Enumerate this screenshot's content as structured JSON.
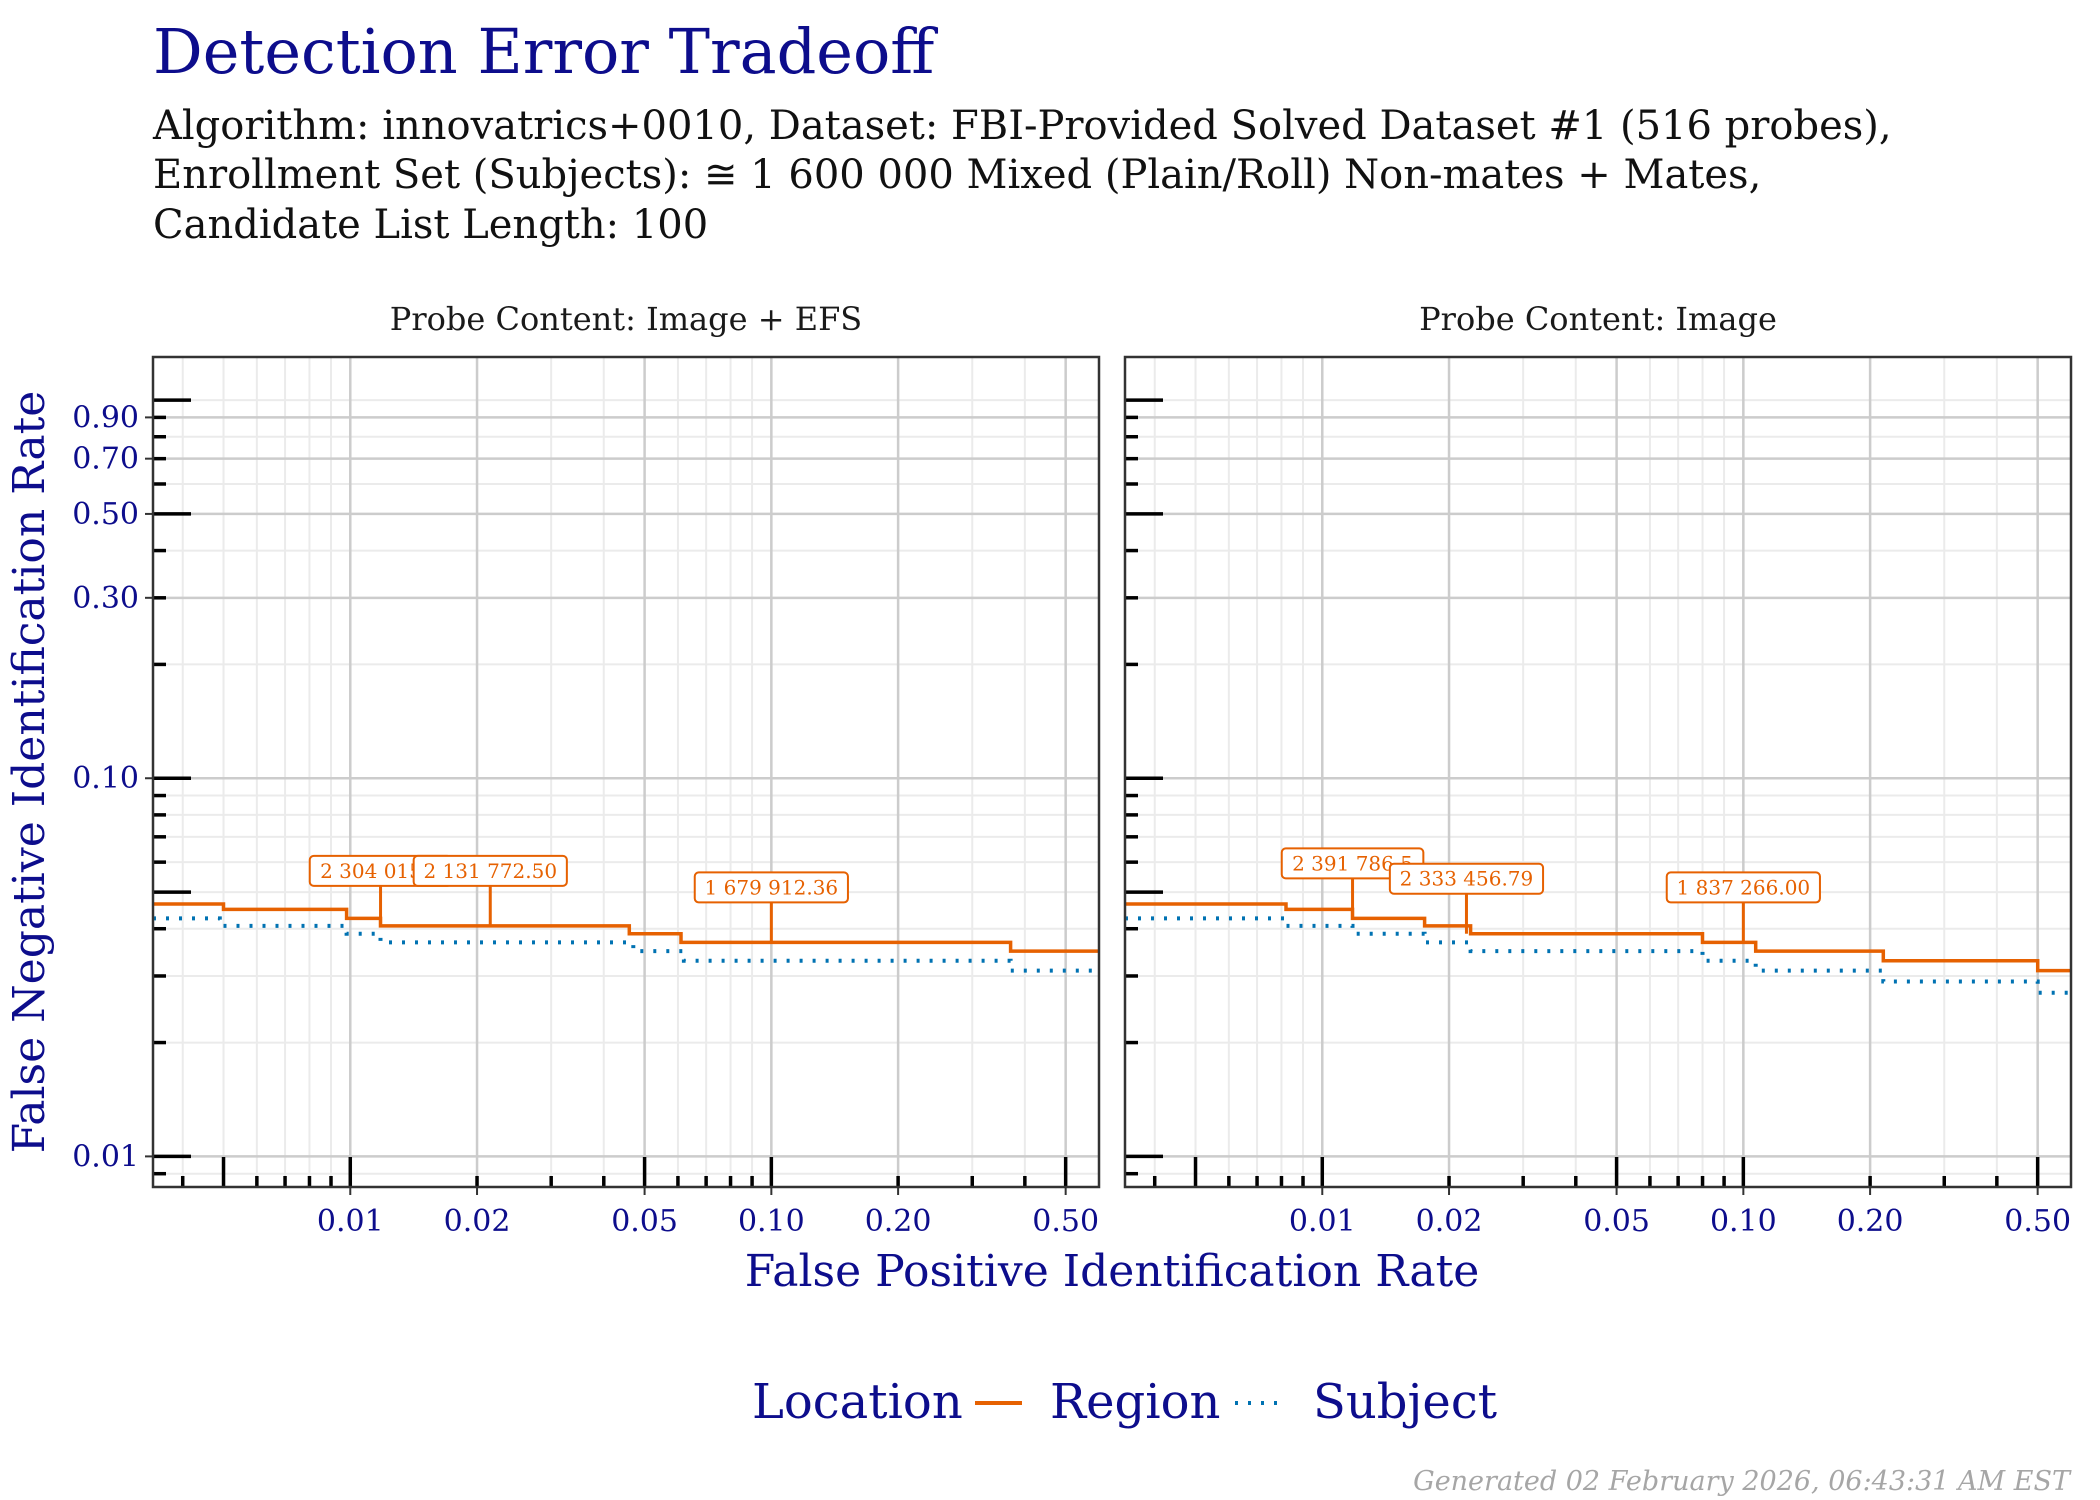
{
  "chart_data": {
    "type": "line",
    "title": "Detection Error Tradeoff",
    "subtitle_lines": [
      "Algorithm: innovatrics+0010, Dataset: FBI-Provided Solved Dataset #1 (516 probes),",
      "Enrollment Set (Subjects): ≅ 1 600 000 Mixed (Plain/Roll) Non-mates + Mates,",
      "Candidate List Length: 100"
    ],
    "xlabel": "False Positive Identification Rate",
    "ylabel": "False Negative Identification Rate",
    "x_scale": "log",
    "y_scale": "log",
    "xlim": [
      0.0034,
      0.6
    ],
    "ylim": [
      0.0083,
      1.3
    ],
    "xticks": [
      0.01,
      0.02,
      0.05,
      0.1,
      0.2,
      0.5
    ],
    "xtick_labels": [
      "0.01",
      "0.02",
      "0.05",
      "0.10",
      "0.20",
      "0.50"
    ],
    "yticks": [
      0.01,
      0.1,
      0.3,
      0.5,
      0.7,
      0.9
    ],
    "ytick_labels": [
      "0.01",
      "0.10",
      "0.30",
      "0.50",
      "0.70",
      "0.90"
    ],
    "grid": true,
    "legend": {
      "title": "Location",
      "position": "bottom",
      "entries": [
        {
          "name": "Region",
          "color": "#e66101",
          "style": "solid"
        },
        {
          "name": "Subject",
          "color": "#0072b2",
          "style": "dotted"
        }
      ]
    },
    "panels": [
      {
        "strip": "Probe Content: Image + EFS",
        "series": [
          {
            "name": "Region",
            "x": [
              0.0034,
              0.005,
              0.0098,
              0.0118,
              0.046,
              0.061,
              0.37,
              0.6
            ],
            "y": [
              0.0465,
              0.045,
              0.0426,
              0.0407,
              0.0388,
              0.0368,
              0.0349,
              0.0349
            ]
          },
          {
            "name": "Subject",
            "x": [
              0.0034,
              0.0049,
              0.0098,
              0.0118,
              0.047,
              0.062,
              0.37,
              0.6
            ],
            "y": [
              0.0426,
              0.0407,
              0.0388,
              0.0368,
              0.0349,
              0.0329,
              0.031,
              0.031
            ]
          }
        ],
        "annotations": [
          {
            "text": "2 304 015.1",
            "x": 0.0118,
            "y": 0.0407
          },
          {
            "text": "2 131 772.50",
            "x": 0.0215,
            "y": 0.0407
          },
          {
            "text": "1 679 912.36",
            "x": 0.1,
            "y": 0.0368
          }
        ]
      },
      {
        "strip": "Probe Content: Image",
        "series": [
          {
            "name": "Region",
            "x": [
              0.0034,
              0.0082,
              0.0118,
              0.0175,
              0.0225,
              0.08,
              0.107,
              0.215,
              0.5,
              0.6
            ],
            "y": [
              0.0465,
              0.045,
              0.0426,
              0.0407,
              0.0388,
              0.0368,
              0.0349,
              0.0329,
              0.031,
              0.031
            ]
          },
          {
            "name": "Subject",
            "x": [
              0.0034,
              0.0082,
              0.0118,
              0.0175,
              0.0225,
              0.08,
              0.107,
              0.215,
              0.5,
              0.6
            ],
            "y": [
              0.0426,
              0.0407,
              0.0388,
              0.0368,
              0.0349,
              0.0329,
              0.031,
              0.029,
              0.0271,
              0.0271
            ]
          }
        ],
        "annotations": [
          {
            "text": "2 391 786.5",
            "x": 0.0118,
            "y": 0.0426
          },
          {
            "text": "2 333 456.79",
            "x": 0.022,
            "y": 0.0388
          },
          {
            "text": "1 837 266.00",
            "x": 0.1,
            "y": 0.0368
          }
        ]
      }
    ]
  },
  "footer": "Generated 02 February 2026, 06:43:31 AM EST",
  "colors": {
    "title": "#0d0d8c",
    "axis_text": "#0d0d8c",
    "region": "#e66101",
    "subject": "#0072b2",
    "grid_major": "#cccccc",
    "grid_minor": "#ebebeb"
  }
}
